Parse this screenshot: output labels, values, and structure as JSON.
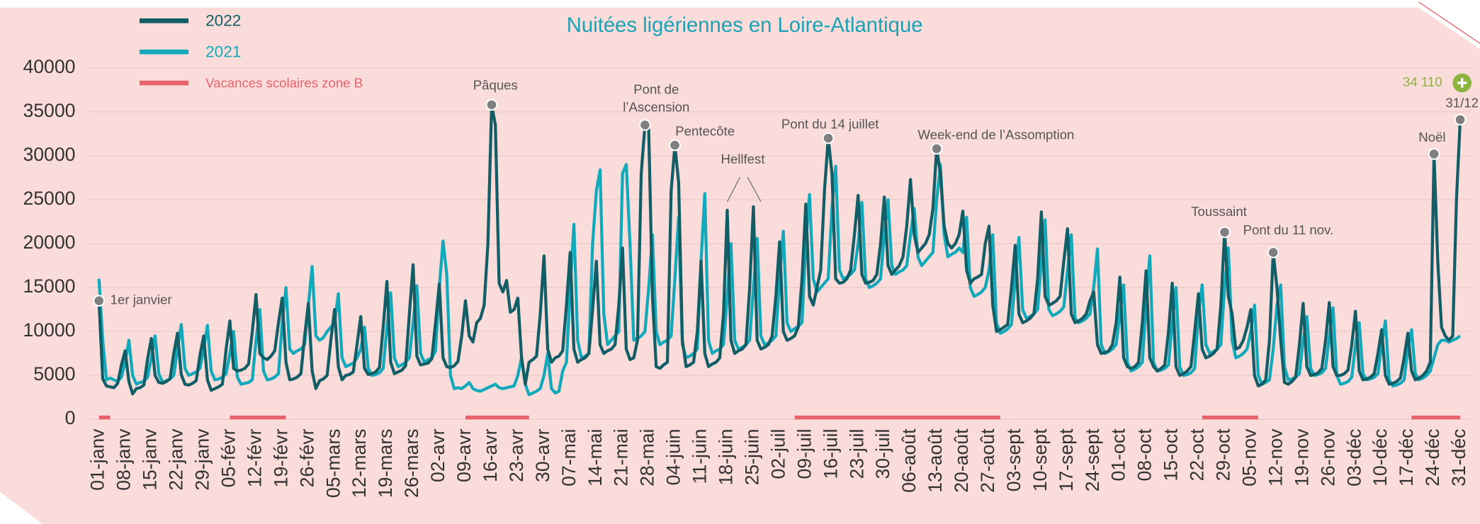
{
  "chart_data": {
    "type": "line",
    "title": "Nuitées ligériennes en Loire-Atlantique",
    "categories": [
      "01-janv",
      null,
      null,
      null,
      null,
      null,
      null,
      "08-janv",
      null,
      null,
      null,
      null,
      null,
      null,
      "15-janv",
      null,
      null,
      null,
      null,
      null,
      null,
      "22-janv",
      null,
      null,
      null,
      null,
      null,
      null,
      "29-janv",
      null,
      null,
      null,
      null,
      null,
      null,
      "05-févr",
      null,
      null,
      null,
      null,
      null,
      null,
      "12-févr",
      null,
      null,
      null,
      null,
      null,
      null,
      "19-févr",
      null,
      null,
      null,
      null,
      null,
      null,
      "26-févr",
      null,
      null,
      null,
      null,
      null,
      null,
      "05-mars",
      null,
      null,
      null,
      null,
      null,
      null,
      "12-mars",
      null,
      null,
      null,
      null,
      null,
      null,
      "19-mars",
      null,
      null,
      null,
      null,
      null,
      null,
      "26-mars",
      null,
      null,
      null,
      null,
      null,
      null,
      "02-avr",
      null,
      null,
      null,
      null,
      null,
      null,
      "09-avr",
      null,
      null,
      null,
      null,
      null,
      null,
      "16-avr",
      null,
      null,
      null,
      null,
      null,
      null,
      "23-avr",
      null,
      null,
      null,
      null,
      null,
      null,
      "30-avr",
      null,
      null,
      null,
      null,
      null,
      null,
      "07-mai",
      null,
      null,
      null,
      null,
      null,
      null,
      "14-mai",
      null,
      null,
      null,
      null,
      null,
      null,
      "21-mai",
      null,
      null,
      null,
      null,
      null,
      null,
      "28-mai",
      null,
      null,
      null,
      null,
      null,
      null,
      "04-juin",
      null,
      null,
      null,
      null,
      null,
      null,
      "11-juin",
      null,
      null,
      null,
      null,
      null,
      null,
      "18-juin",
      null,
      null,
      null,
      null,
      null,
      null,
      "25-juin",
      null,
      null,
      null,
      null,
      null,
      null,
      "02-juil",
      null,
      null,
      null,
      null,
      null,
      null,
      "09-juil",
      null,
      null,
      null,
      null,
      null,
      null,
      "16-juil",
      null,
      null,
      null,
      null,
      null,
      null,
      "23-juil",
      null,
      null,
      null,
      null,
      null,
      null,
      "30-juil",
      null,
      null,
      null,
      null,
      null,
      null,
      "06-août",
      null,
      null,
      null,
      null,
      null,
      null,
      "13-août",
      null,
      null,
      null,
      null,
      null,
      null,
      "20-août",
      null,
      null,
      null,
      null,
      null,
      null,
      "27-août",
      null,
      null,
      null,
      null,
      null,
      null,
      "03-sept",
      null,
      null,
      null,
      null,
      null,
      null,
      "10-sept",
      null,
      null,
      null,
      null,
      null,
      null,
      "17-sept",
      null,
      null,
      null,
      null,
      null,
      null,
      "24-sept",
      null,
      null,
      null,
      null,
      null,
      null,
      "01-oct",
      null,
      null,
      null,
      null,
      null,
      null,
      "08-oct",
      null,
      null,
      null,
      null,
      null,
      null,
      "15-oct",
      null,
      null,
      null,
      null,
      null,
      null,
      "22-oct",
      null,
      null,
      null,
      null,
      null,
      null,
      "29-oct",
      null,
      null,
      null,
      null,
      null,
      null,
      "05-nov",
      null,
      null,
      null,
      null,
      null,
      null,
      "12-nov",
      null,
      null,
      null,
      null,
      null,
      null,
      "19-nov",
      null,
      null,
      null,
      null,
      null,
      null,
      "26-nov",
      null,
      null,
      null,
      null,
      null,
      null,
      "03-déc",
      null,
      null,
      null,
      null,
      null,
      null,
      "10-déc",
      null,
      null,
      null,
      null,
      null,
      null,
      "17-déc",
      null,
      null,
      null,
      null,
      null,
      null,
      "24-déc",
      null,
      null,
      null,
      null,
      null,
      null,
      "31-déc"
    ],
    "series": [
      {
        "name": "2022",
        "color": "#135e66",
        "values": [
          13500,
          4600,
          3800,
          3700,
          3600,
          4100,
          6200,
          7800,
          4300,
          2900,
          3500,
          3600,
          3900,
          6900,
          9200,
          5000,
          4200,
          4100,
          4300,
          4600,
          7500,
          9800,
          5100,
          4000,
          3900,
          4100,
          4400,
          7300,
          9500,
          4500,
          3300,
          3500,
          3700,
          4000,
          8000,
          11200,
          5800,
          5500,
          5600,
          5800,
          6300,
          10000,
          14200,
          7500,
          7000,
          6800,
          7200,
          7800,
          11000,
          13800,
          6500,
          4500,
          4600,
          4800,
          5200,
          9500,
          13200,
          5500,
          3500,
          4400,
          4600,
          5000,
          9000,
          12500,
          6000,
          4500,
          5000,
          5100,
          5400,
          8500,
          11700,
          5800,
          5100,
          5200,
          5400,
          5900,
          10500,
          15700,
          6500,
          5200,
          5400,
          5600,
          6100,
          12000,
          17600,
          7200,
          6200,
          6300,
          6400,
          6900,
          11000,
          15400,
          7000,
          6000,
          5900,
          6100,
          6600,
          9500,
          13500,
          9500,
          8800,
          11000,
          11500,
          13000,
          20000,
          35800,
          33500,
          15500,
          14500,
          15800,
          12200,
          12500,
          13800,
          7000,
          4000,
          6500,
          6800,
          7200,
          12000,
          18600,
          8000,
          6500,
          7000,
          7200,
          7800,
          13000,
          19000,
          8000,
          6500,
          6800,
          7000,
          7500,
          12500,
          18000,
          8500,
          7500,
          7800,
          8000,
          8500,
          13000,
          19500,
          8000,
          6800,
          7000,
          9000,
          28000,
          33500,
          33000,
          14000,
          6000,
          5800,
          6200,
          6500,
          26000,
          31200,
          27000,
          9000,
          6000,
          6200,
          6500,
          10000,
          18000,
          7500,
          6000,
          6300,
          6500,
          7000,
          12000,
          23800,
          9000,
          7500,
          7800,
          8000,
          8500,
          15000,
          24200,
          9000,
          8000,
          8200,
          8500,
          9500,
          14000,
          20200,
          10000,
          9000,
          9200,
          9500,
          10500,
          16000,
          24500,
          14000,
          13000,
          15000,
          17000,
          26000,
          32000,
          28000,
          16000,
          15500,
          15600,
          16000,
          17000,
          21000,
          25500,
          16500,
          15500,
          15600,
          15800,
          16500,
          20000,
          25300,
          17500,
          16500,
          17000,
          17500,
          18500,
          22000,
          27300,
          21000,
          19000,
          19500,
          20000,
          21000,
          24000,
          30800,
          28000,
          22000,
          20000,
          19500,
          20000,
          21000,
          23700,
          17000,
          15500,
          16000,
          16200,
          16500,
          20000,
          22000,
          13000,
          10000,
          10200,
          10500,
          10800,
          15000,
          19800,
          12000,
          11000,
          11200,
          11500,
          12000,
          16000,
          23600,
          14000,
          13000,
          13200,
          13500,
          14000,
          18000,
          21700,
          12000,
          11000,
          11200,
          11500,
          12000,
          13500,
          14500,
          8500,
          7500,
          7600,
          7800,
          8500,
          11000,
          16200,
          7000,
          6000,
          5800,
          6000,
          6500,
          11000,
          16900,
          7000,
          6000,
          5500,
          5800,
          6200,
          10000,
          15500,
          6000,
          5000,
          5200,
          5500,
          6000,
          10000,
          14300,
          8000,
          7000,
          7200,
          7500,
          8000,
          13000,
          21300,
          14000,
          12000,
          8000,
          8200,
          9000,
          10500,
          12500,
          5000,
          3800,
          4000,
          4500,
          9000,
          19000,
          15000,
          9000,
          4200,
          4000,
          4300,
          4800,
          8500,
          13200,
          6000,
          5000,
          5100,
          5300,
          5800,
          9000,
          13300,
          6000,
          5000,
          5000,
          5200,
          5600,
          8500,
          12300,
          5500,
          4500,
          4600,
          4800,
          5200,
          7500,
          10200,
          5000,
          4000,
          4100,
          4300,
          4700,
          7000,
          9800,
          5500,
          4500,
          4700,
          5000,
          5500,
          6500,
          30200,
          18000,
          10500,
          9500,
          9000,
          9500,
          25000,
          34110
        ]
      },
      {
        "name": "2021",
        "color": "#12aabb",
        "values": [
          16000,
          9000,
          4500,
          4700,
          4500,
          4300,
          4800,
          6500,
          9000,
          5000,
          4000,
          4200,
          4300,
          4800,
          7000,
          9500,
          5200,
          4200,
          4400,
          4600,
          5000,
          8000,
          10800,
          5800,
          5000,
          5200,
          5400,
          5800,
          8000,
          10700,
          5500,
          4500,
          4600,
          4800,
          5200,
          7500,
          10000,
          4800,
          4000,
          4100,
          4200,
          4500,
          9000,
          12500,
          5500,
          4500,
          4600,
          4800,
          5200,
          11000,
          15000,
          8000,
          7500,
          7800,
          8000,
          8500,
          13000,
          17400,
          9500,
          9000,
          9300,
          10000,
          10500,
          11000,
          14300,
          7000,
          6000,
          6200,
          6400,
          7000,
          8000,
          10500,
          5800,
          5000,
          5100,
          5300,
          5800,
          10500,
          14400,
          7000,
          6000,
          6200,
          6500,
          7000,
          11000,
          15200,
          7500,
          6500,
          6800,
          7000,
          7800,
          15000,
          20300,
          16500,
          5000,
          3500,
          3600,
          3500,
          3800,
          4200,
          3500,
          3300,
          3200,
          3400,
          3600,
          3800,
          4000,
          3600,
          3500,
          3600,
          3700,
          3800,
          5000,
          7000,
          4000,
          2800,
          3000,
          3200,
          3500,
          5000,
          7500,
          3500,
          3000,
          3200,
          5500,
          6500,
          15000,
          22200,
          9000,
          7000,
          7200,
          7500,
          20000,
          26000,
          28400,
          12000,
          8500,
          9000,
          9500,
          10000,
          28000,
          29000,
          20000,
          9000,
          9200,
          9500,
          10000,
          15000,
          21000,
          10000,
          8500,
          8800,
          9000,
          9500,
          16000,
          23000,
          8500,
          7000,
          7200,
          7500,
          8000,
          18000,
          25700,
          9000,
          7500,
          7800,
          8000,
          8500,
          14000,
          20000,
          9000,
          8000,
          8200,
          8500,
          9000,
          15000,
          20600,
          9500,
          8500,
          8700,
          9000,
          9500,
          16000,
          21400,
          11000,
          10000,
          10300,
          10600,
          11000,
          20000,
          25600,
          16000,
          14500,
          15000,
          15500,
          16000,
          24000,
          28800,
          17000,
          16000,
          16200,
          16500,
          17000,
          20000,
          24700,
          16000,
          15000,
          15200,
          15500,
          16000,
          21000,
          25000,
          17500,
          16500,
          16800,
          17000,
          17500,
          21000,
          24000,
          18500,
          17500,
          18000,
          18500,
          19000,
          25000,
          29000,
          21000,
          18500,
          18800,
          19000,
          19500,
          19000,
          23000,
          15000,
          14000,
          14200,
          14500,
          15000,
          17000,
          21000,
          11000,
          9800,
          10000,
          10300,
          10800,
          16000,
          20700,
          12500,
          11500,
          11700,
          12000,
          12500,
          18000,
          22700,
          12500,
          11800,
          12000,
          12300,
          12800,
          17000,
          21000,
          11500,
          11000,
          11200,
          11500,
          12000,
          15000,
          19400,
          8500,
          7500,
          7700,
          8000,
          8500,
          12000,
          15300,
          6500,
          5500,
          5700,
          6000,
          6500,
          13000,
          18600,
          6500,
          5500,
          5600,
          5800,
          6200,
          11000,
          15000,
          6000,
          5000,
          5100,
          5300,
          5800,
          12000,
          15300,
          8500,
          7500,
          7700,
          8000,
          8500,
          15000,
          19500,
          9000,
          7000,
          7200,
          7500,
          8000,
          10000,
          13000,
          5000,
          4000,
          4200,
          4500,
          8000,
          13000,
          15300,
          6000,
          4500,
          4600,
          4800,
          5200,
          9000,
          11700,
          5800,
          5000,
          5100,
          5300,
          5800,
          9500,
          12700,
          5000,
          4000,
          4100,
          4300,
          4800,
          8500,
          11000,
          5200,
          4500,
          4600,
          4800,
          5200,
          8500,
          11200,
          4500,
          3800,
          3900,
          4100,
          4500,
          8000,
          10200,
          5200,
          4500,
          4700,
          5000,
          5500,
          7000,
          8500,
          9000,
          9000,
          8800,
          9000,
          9200,
          9500
        ]
      }
    ],
    "vacations": {
      "name": "Vacances scolaires zone B",
      "color": "#e8636b",
      "periods": [
        [
          0,
          3
        ],
        [
          35,
          50
        ],
        [
          98,
          115
        ],
        [
          186,
          241
        ],
        [
          295,
          310
        ],
        [
          351,
          364
        ]
      ]
    },
    "annotations": [
      {
        "text": "1er janvier",
        "point": 0
      },
      {
        "text": "Pâques",
        "point": 105
      },
      {
        "text": "Pont de\nl’Ascension",
        "point": 146
      },
      {
        "text": "Pentecôte",
        "point": 154
      },
      {
        "text": "Pont du 14 juillet",
        "point": 195
      },
      {
        "text": "Week-end de l’Assomption",
        "point": 224
      },
      {
        "text": "Toussaint",
        "point": 301
      },
      {
        "text": "Pont du 11 nov.",
        "point": 314
      },
      {
        "text": "Noël",
        "point": 357
      },
      {
        "text": "31/12",
        "point": 364
      },
      {
        "text": "34 110",
        "point": 364
      }
    ],
    "hellfest": {
      "text": "Hellfest",
      "points": [
        168,
        175
      ]
    },
    "ylim": [
      0,
      40000
    ],
    "yticks": [
      0,
      5000,
      10000,
      15000,
      20000,
      25000,
      30000,
      35000,
      40000
    ],
    "grid": true,
    "legend": "top-left"
  }
}
